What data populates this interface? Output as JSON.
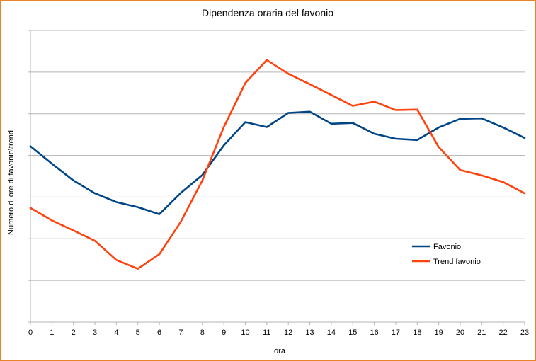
{
  "chart_data": {
    "type": "line",
    "title": "Dipendenza oraria del favonio",
    "xlabel": "ora",
    "ylabel": "Numero di ore di favonio\\trend",
    "categories": [
      "0",
      "1",
      "2",
      "3",
      "4",
      "5",
      "6",
      "7",
      "8",
      "9",
      "10",
      "11",
      "12",
      "13",
      "14",
      "15",
      "16",
      "17",
      "18",
      "19",
      "20",
      "21",
      "22",
      "23"
    ],
    "ylim": [
      0,
      7
    ],
    "y_tick_count": 8,
    "y_tick_labels_visible": false,
    "grid": true,
    "legend_position": "right",
    "series": [
      {
        "name": "Favonio",
        "color": "#004586",
        "values": [
          4.22,
          3.8,
          3.4,
          3.09,
          2.88,
          2.76,
          2.59,
          3.1,
          3.53,
          4.24,
          4.8,
          4.68,
          5.02,
          5.05,
          4.76,
          4.78,
          4.52,
          4.4,
          4.37,
          4.67,
          4.88,
          4.89,
          4.67,
          4.42
        ]
      },
      {
        "name": "Trend favonio",
        "color": "#ff420e",
        "values": [
          2.74,
          2.44,
          2.2,
          1.95,
          1.49,
          1.28,
          1.63,
          2.41,
          3.4,
          4.68,
          5.74,
          6.29,
          5.96,
          5.71,
          5.45,
          5.19,
          5.29,
          5.09,
          5.1,
          4.2,
          3.65,
          3.52,
          3.36,
          3.09
        ]
      }
    ]
  }
}
